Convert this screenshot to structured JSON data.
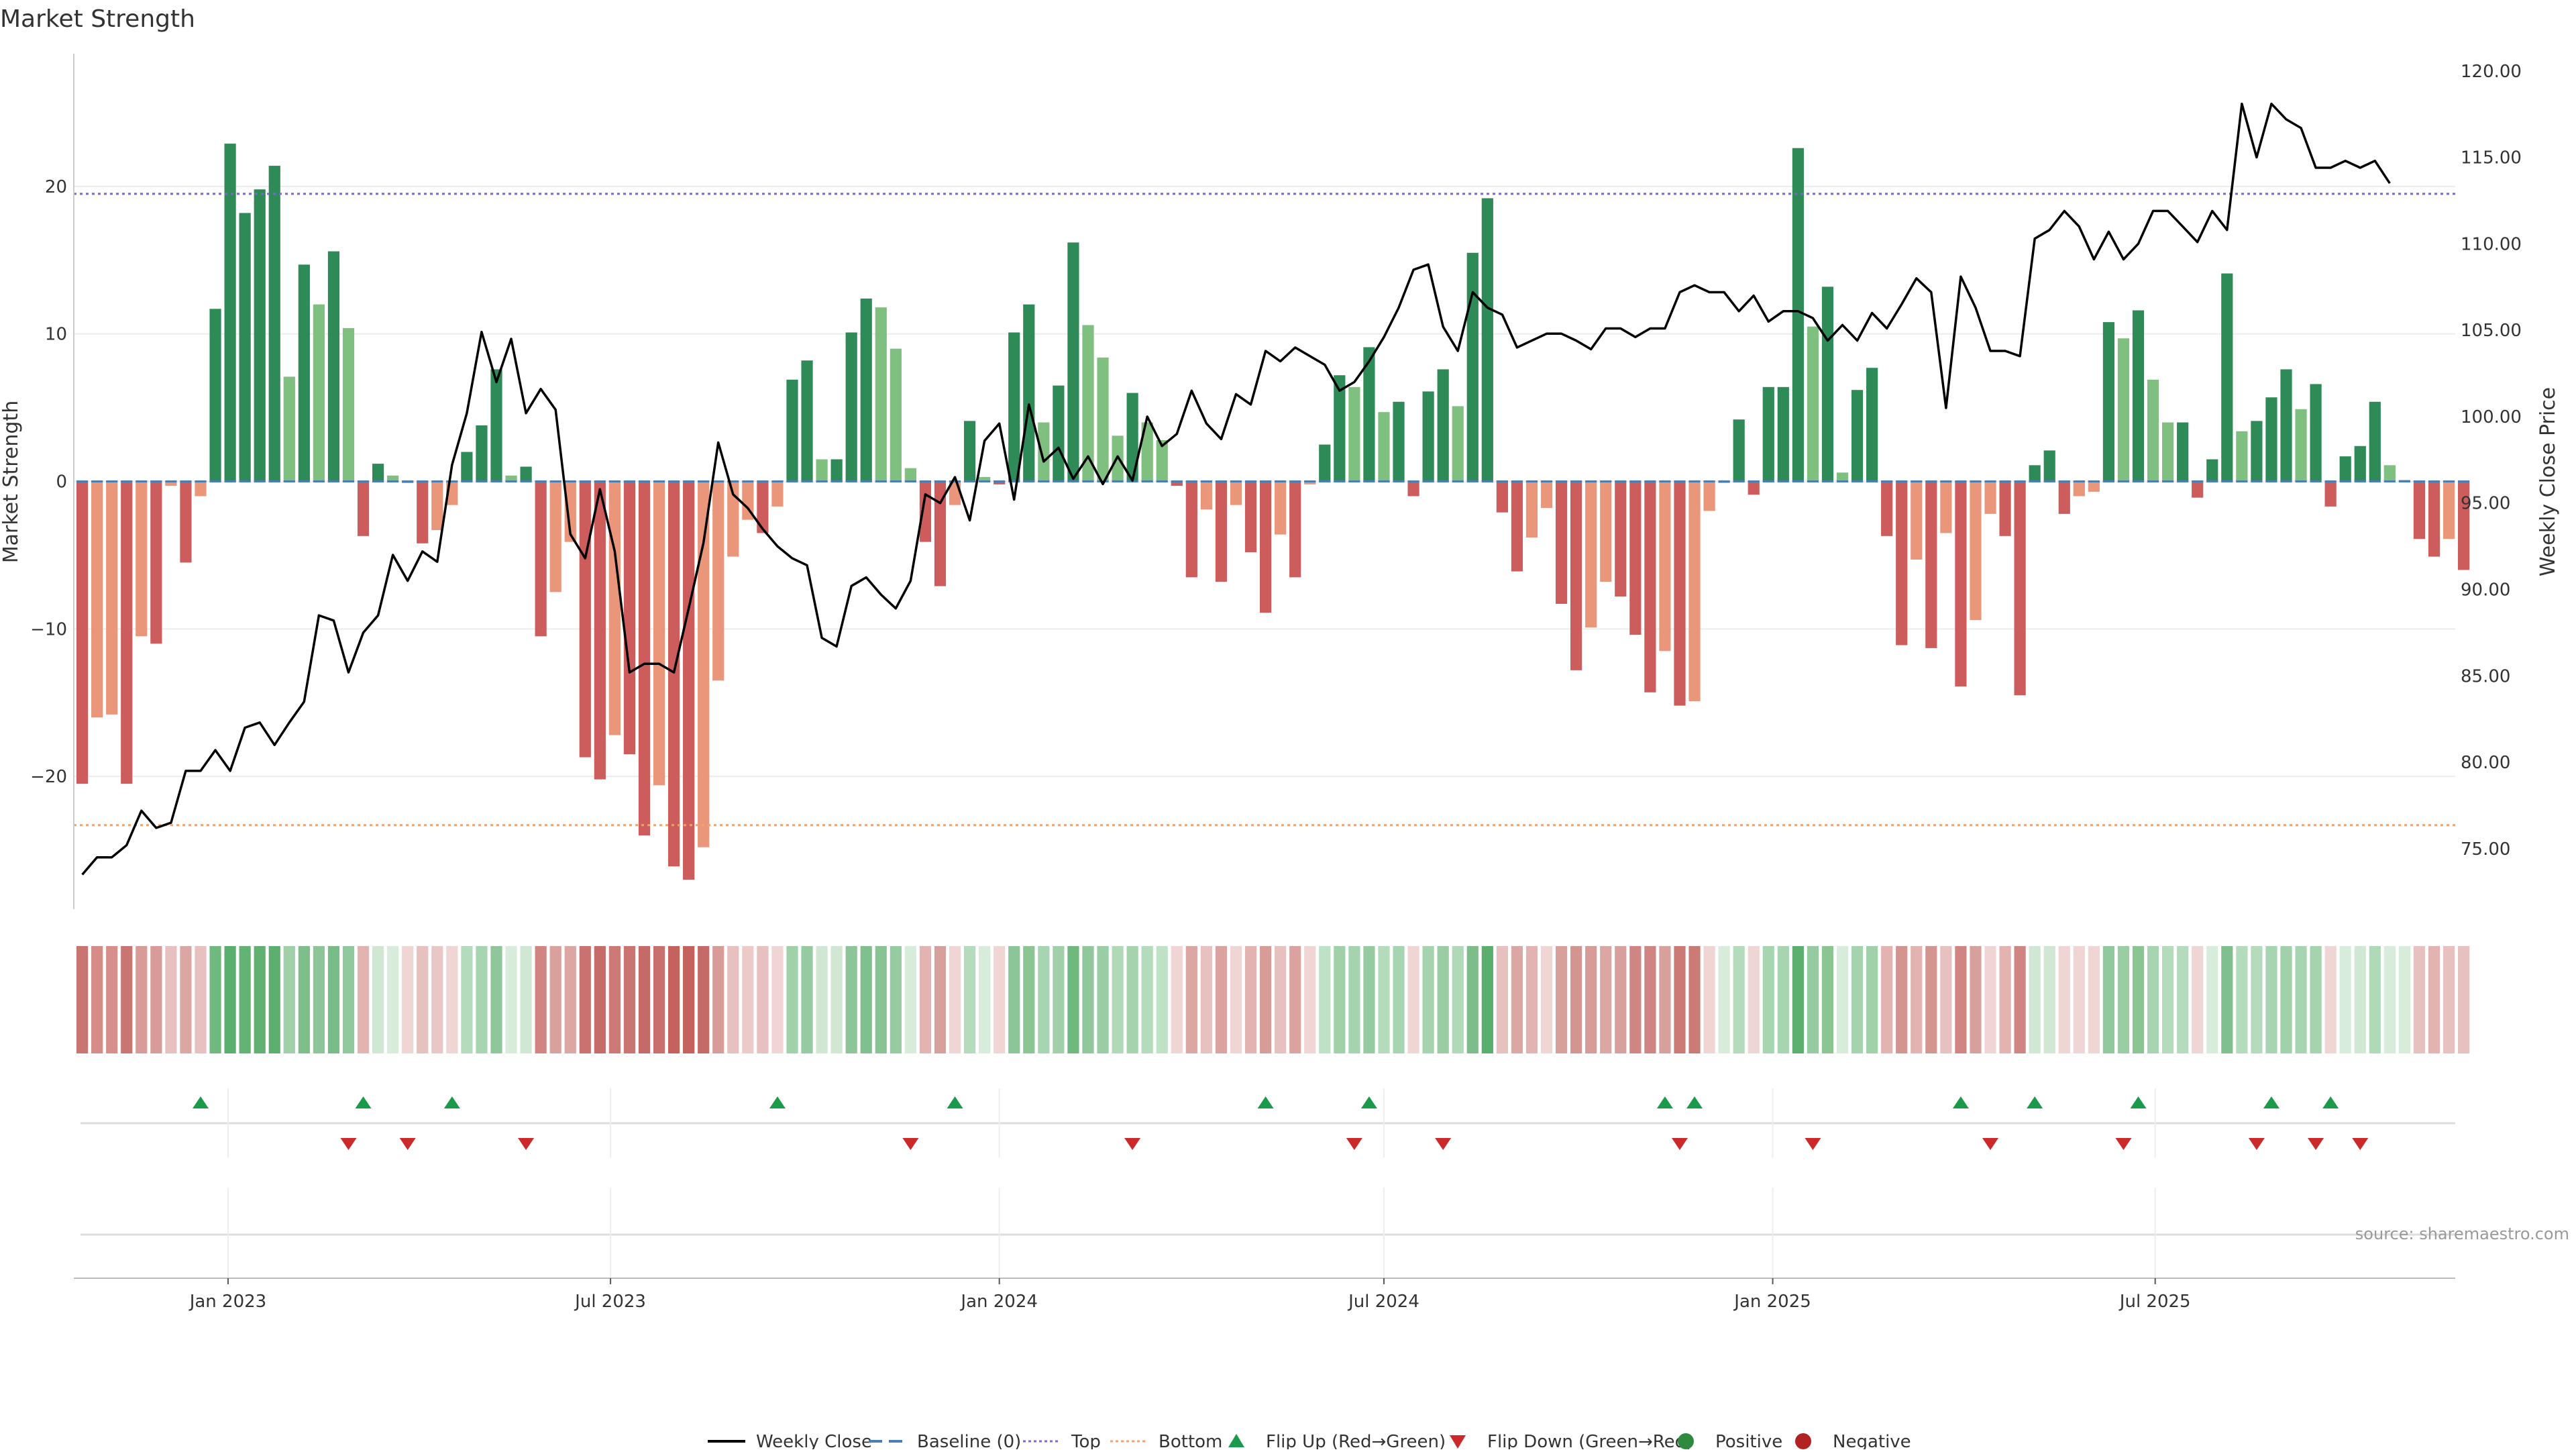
{
  "chart_data": {
    "type": "bar",
    "title": "Market Strength",
    "ylabel_left": "Market Strength",
    "ylabel_right": "Weekly Close Price",
    "source": "source: sharemaestro.com",
    "left_axis": {
      "ylim": [
        -29,
        29
      ],
      "ticks": [
        20,
        10,
        0,
        -10,
        -20
      ],
      "tick_labels": [
        "20",
        "10",
        "0",
        "−10",
        "−20"
      ]
    },
    "right_axis": {
      "ylim": [
        71.5,
        121
      ],
      "ticks": [
        120,
        115,
        110,
        105,
        100,
        95,
        90,
        85,
        80,
        75
      ],
      "tick_labels": [
        "120.00",
        "115.00",
        "110.00",
        "105.00",
        "100.00",
        "95.00",
        "90.00",
        "85.00",
        "80.00",
        "75.00"
      ]
    },
    "x_axis": {
      "start": "2022-10-20",
      "end": "2025-11-20",
      "ticks": [
        "2023-01-01",
        "2023-07-01",
        "2024-01-01",
        "2024-07-01",
        "2025-01-01",
        "2025-07-01"
      ],
      "tick_labels": [
        "Jan 2023",
        "Jul 2023",
        "Jan 2024",
        "Jul 2024",
        "Jan 2025",
        "Jul 2025"
      ]
    },
    "top_line": 19.5,
    "bottom_line": -23.3,
    "start_date": "2022-10-24",
    "strength": [
      -20.5,
      -16,
      -15.8,
      -20.5,
      -10.5,
      -11,
      -0.3,
      -5.5,
      -1,
      11.7,
      22.9,
      18.2,
      19.8,
      21.4,
      7.1,
      14.7,
      12,
      15.6,
      10.4,
      -3.7,
      1.2,
      0.4,
      -0.1,
      -4.2,
      -3.3,
      -1.6,
      2,
      3.8,
      7.6,
      0.4,
      1,
      -10.5,
      -7.5,
      -4.1,
      -18.7,
      -20.2,
      -17.2,
      -18.5,
      -24,
      -20.6,
      -26.1,
      -27,
      -24.8,
      -13.5,
      -5.1,
      -2.6,
      -3.5,
      -1.7,
      6.9,
      8.2,
      1.5,
      1.5,
      10.1,
      12.4,
      11.8,
      9,
      0.9,
      -4.1,
      -7.1,
      -1.6,
      4.1,
      0.3,
      -0.2,
      10.1,
      12,
      4,
      6.5,
      16.2,
      10.6,
      8.4,
      3.1,
      6,
      4,
      2.8,
      -0.3,
      -6.5,
      -1.9,
      -6.8,
      -1.6,
      -4.8,
      -8.9,
      -3.6,
      -6.5,
      -0.2,
      2.5,
      7.2,
      6.4,
      9.1,
      4.7,
      5.4,
      -1,
      6.1,
      7.6,
      5.1,
      15.5,
      19.2,
      -2.1,
      -6.1,
      -3.8,
      -1.8,
      -8.3,
      -12.8,
      -9.9,
      -6.8,
      -7.8,
      -10.4,
      -14.3,
      -11.5,
      -15.2,
      -14.9,
      -2,
      0,
      4.2,
      -0.9,
      6.4,
      6.4,
      22.6,
      10.5,
      13.2,
      0.6,
      6.2,
      7.7,
      -3.7,
      -11.1,
      -5.3,
      -11.3,
      -3.5,
      -13.9,
      -9.4,
      -2.2,
      -3.7,
      -14.5,
      1.1,
      2.1,
      -2.2,
      -1,
      -0.7,
      10.8,
      9.7,
      11.6,
      6.9,
      4,
      4,
      -1.1,
      1.5,
      14.1,
      3.4,
      4.1,
      5.7,
      7.6,
      4.9,
      6.6,
      -1.7,
      1.7,
      2.4,
      5.4,
      1.1,
      0.1,
      -3.9,
      -5.1,
      -3.9,
      -6
    ],
    "weekly_close": [
      73.5,
      74.5,
      74.5,
      75.2,
      77.2,
      76.2,
      76.5,
      79.5,
      79.5,
      80.7,
      79.5,
      82,
      82.3,
      81,
      82.3,
      83.5,
      88.5,
      88.2,
      85.2,
      87.5,
      88.5,
      92,
      90.5,
      92.2,
      91.6,
      97.2,
      100.2,
      104.9,
      102,
      104.5,
      100.2,
      101.6,
      100.4,
      93.2,
      91.8,
      95.8,
      92.2,
      85.2,
      85.7,
      85.7,
      85.2,
      88.9,
      92.7,
      98.5,
      95.5,
      94.7,
      93.5,
      92.5,
      91.8,
      91.4,
      87.2,
      86.7,
      90.2,
      90.7,
      89.7,
      88.9,
      90.5,
      95.5,
      95,
      96.5,
      94,
      98.6,
      99.6,
      95.2,
      100.7,
      97.4,
      98.2,
      96.4,
      97.7,
      96.1,
      97.7,
      96.3,
      100,
      98.3,
      99,
      101.5,
      99.6,
      98.7,
      101.3,
      100.7,
      103.8,
      103.2,
      104,
      103.5,
      103,
      101.5,
      102,
      103.2,
      104.6,
      106.3,
      108.5,
      108.8,
      105.2,
      103.8,
      107.2,
      106.3,
      105.9,
      104,
      104.4,
      104.8,
      104.8,
      104.4,
      103.9,
      105.1,
      105.1,
      104.6,
      105.1,
      105.1,
      107.2,
      107.6,
      107.2,
      107.2,
      106.1,
      107,
      105.5,
      106.1,
      106.1,
      105.7,
      104.4,
      105.3,
      104.4,
      106,
      105.1,
      106.5,
      108,
      107.2,
      100.5,
      108.1,
      106.3,
      103.8,
      103.8,
      103.5,
      110.3,
      110.8,
      111.9,
      111,
      109.1,
      110.7,
      109.1,
      110,
      111.9,
      111.9,
      111,
      110.1,
      111.9,
      110.8,
      118.1,
      115,
      118.1,
      117.2,
      116.7,
      114.4,
      114.4,
      114.8,
      114.4,
      114.8,
      113.5
    ],
    "flip_up_weeks": [
      8,
      19,
      25,
      47,
      59,
      80,
      87,
      107,
      109,
      127,
      132,
      139,
      148,
      152
    ],
    "flip_down_weeks": [
      18,
      22,
      30,
      56,
      71,
      86,
      92,
      108,
      117,
      129,
      138,
      147,
      151,
      154
    ],
    "strip_colors": [
      "#c97673",
      "#d58c87",
      "#d68f8a",
      "#c97673",
      "#d89c98",
      "#d89c98",
      "#e6c1bf",
      "#dca6a3",
      "#e6c1bf",
      "#6fb97f",
      "#5aae6e",
      "#63b375",
      "#60b172",
      "#5daf70",
      "#9fd0a8",
      "#7dbe8b",
      "#8cc698",
      "#78bc87",
      "#92c89d",
      "#e2b3b1",
      "#cfe7d3",
      "#d8ecdb",
      "#efd5d4",
      "#e6c1bf",
      "#e8c7c6",
      "#efd5d4",
      "#b4dbbc",
      "#a8d5b1",
      "#8fc79a",
      "#d8ecdb",
      "#cfe7d3",
      "#d08582",
      "#d9a09c",
      "#dca6a3",
      "#c9726f",
      "#c66c68",
      "#cb7a76",
      "#c97673",
      "#c56a66",
      "#c8706d",
      "#c4625e",
      "#c4625e",
      "#c56a66",
      "#d89c98",
      "#e6c1bf",
      "#ebcac8",
      "#e6c1bf",
      "#efd5d4",
      "#a0d1a9",
      "#96cba1",
      "#cfe7d3",
      "#cfe7d3",
      "#8cc698",
      "#80bf8e",
      "#87c393",
      "#96cba1",
      "#d8ecdb",
      "#e2b3b1",
      "#d8a09c",
      "#efd5d4",
      "#b4dbbc",
      "#d8ecdb",
      "#efd5d4",
      "#8cc698",
      "#8ac592",
      "#a8d5b1",
      "#9fd0a8",
      "#6fb97f",
      "#90c89b",
      "#9acda4",
      "#afd9b7",
      "#a4d3ad",
      "#b4dbbc",
      "#bfe1c6",
      "#efd5d4",
      "#dca6a3",
      "#e6c1bf",
      "#dba3a0",
      "#efd5d4",
      "#e2b3b1",
      "#d89c98",
      "#e6c1bf",
      "#dba3a0",
      "#efd5d4",
      "#bfe1c6",
      "#a0d1a9",
      "#a4d3ad",
      "#96cba1",
      "#b4dbbc",
      "#a8d5b1",
      "#efd5d4",
      "#a4d3ad",
      "#9acda4",
      "#afd9b7",
      "#7cbd8a",
      "#5aae6e",
      "#e6c1bf",
      "#dca6a3",
      "#e2b3b1",
      "#efd5d4",
      "#d8a09c",
      "#d49490",
      "#d89c98",
      "#dca6a3",
      "#d8a09c",
      "#d08582",
      "#d08582",
      "#d8a09c",
      "#cb7a76",
      "#cb7a76",
      "#efd5d4",
      "#d8ecdb",
      "#b4dbbc",
      "#efd5d4",
      "#a8d5b1",
      "#a8d5b1",
      "#5daf70",
      "#96cba1",
      "#8ac592",
      "#d8ecdb",
      "#a4d3ad",
      "#a0d1a9",
      "#e2b3b1",
      "#d49490",
      "#e2b3b1",
      "#d49490",
      "#e6c1bf",
      "#d08582",
      "#d8a09c",
      "#efd5d4",
      "#e2b3b1",
      "#d08582",
      "#cfe7d3",
      "#cfe7d3",
      "#efd5d4",
      "#efd5d4",
      "#efd5d4",
      "#92c89d",
      "#9acda4",
      "#8ac592",
      "#a8d5b1",
      "#b4dbbc",
      "#b4dbbc",
      "#efd5d4",
      "#d8ecdb",
      "#80bf8e",
      "#b4dbbc",
      "#b4dbbc",
      "#a8d5b1",
      "#a0d1a9",
      "#a8d5b1",
      "#a4d3ad",
      "#efd5d4",
      "#d8ecdb",
      "#cfe7d3",
      "#afd9b7",
      "#d8ecdb",
      "#d8ecdb",
      "#e6c1bf",
      "#e2b3b1",
      "#e6c1bf",
      "#e6c1bf"
    ],
    "legend": [
      {
        "label": "Weekly Close",
        "kind": "line-solid",
        "color": "#000000"
      },
      {
        "label": "Baseline (0)",
        "kind": "line-dash",
        "color": "#4a7fb5"
      },
      {
        "label": "Top",
        "kind": "line-dot",
        "color": "#7b68c9"
      },
      {
        "label": "Bottom",
        "kind": "line-dot",
        "color": "#f4a06c"
      },
      {
        "label": "Flip Up (Red→Green)",
        "kind": "tri-up",
        "color": "#1a9a4a"
      },
      {
        "label": "Flip Down (Green→Red)",
        "kind": "tri-down",
        "color": "#cc2a2a"
      },
      {
        "label": "Positive",
        "kind": "dot",
        "color": "#2e8b3e"
      },
      {
        "label": "Negative",
        "kind": "dot",
        "color": "#b22222"
      }
    ],
    "colors": {
      "pos_strong": "#2e8b57",
      "pos_weak": "#7fbf7f",
      "neg_strong": "#cd5c5c",
      "neg_weak": "#e9967a",
      "price_line": "#000000",
      "top_line": "#7b68c9",
      "bottom_line": "#f4a06c",
      "baseline": "#4a7fb5",
      "flip_up": "#1a9a4a",
      "flip_down": "#cc2a2a",
      "grid": "#ececec",
      "axis": "#cccccc"
    }
  }
}
